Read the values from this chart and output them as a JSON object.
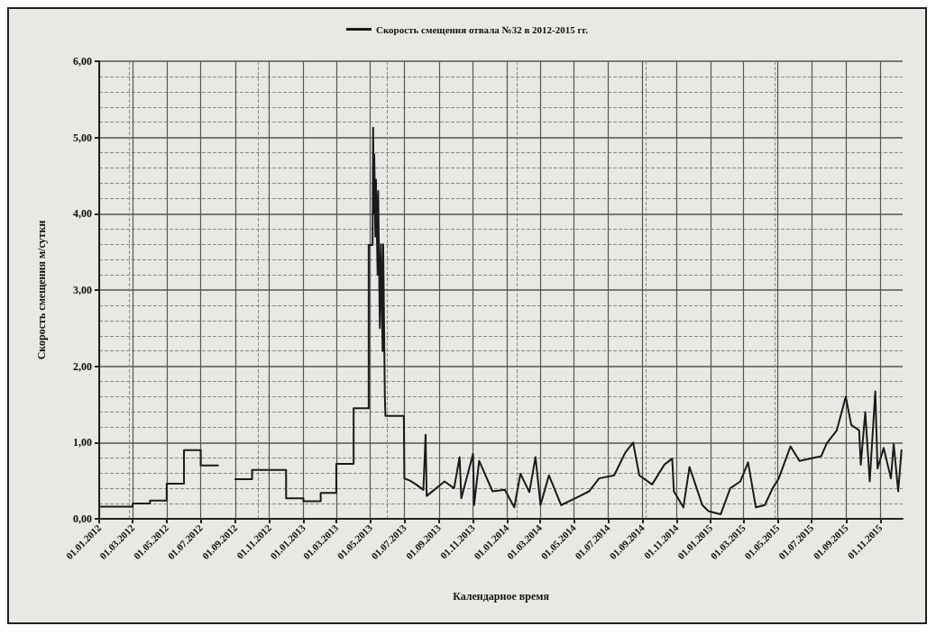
{
  "chart_data": {
    "type": "line",
    "xlabel": "Календарное время",
    "ylabel": "Скорость смещения м/сутки",
    "legend": "top",
    "grid": true,
    "marker": "none",
    "line_style": "solid",
    "xlim": [
      "2012-01-01",
      "2015-12-11"
    ],
    "xticks": [
      {
        "value": "2012-01-01",
        "label": "01.01.2012"
      },
      {
        "value": "2012-03-01",
        "label": "01.03.2012"
      },
      {
        "value": "2012-05-01",
        "label": "01.05.2012"
      },
      {
        "value": "2012-07-01",
        "label": "01.07.2012"
      },
      {
        "value": "2012-09-01",
        "label": "01.09.2012"
      },
      {
        "value": "2012-11-01",
        "label": "01.11.2012"
      },
      {
        "value": "2013-01-01",
        "label": "01.01.2013"
      },
      {
        "value": "2013-03-01",
        "label": "01.03.2013"
      },
      {
        "value": "2013-05-01",
        "label": "01.05.2013"
      },
      {
        "value": "2013-07-01",
        "label": "01.07.2013"
      },
      {
        "value": "2013-09-01",
        "label": "01.09.2013"
      },
      {
        "value": "2013-11-01",
        "label": "01.11.2013"
      },
      {
        "value": "2014-01-01",
        "label": "01.01.2014"
      },
      {
        "value": "2014-03-01",
        "label": "01.03.2014"
      },
      {
        "value": "2014-05-01",
        "label": "01.05.2014"
      },
      {
        "value": "2014-07-01",
        "label": "01.07.2014"
      },
      {
        "value": "2014-09-01",
        "label": "01.09.2014"
      },
      {
        "value": "2014-11-01",
        "label": "01.11.2014"
      },
      {
        "value": "2015-01-01",
        "label": "01.01.2015"
      },
      {
        "value": "2015-03-01",
        "label": "01.03.2015"
      },
      {
        "value": "2015-05-01",
        "label": "01.05.2015"
      },
      {
        "value": "2015-07-01",
        "label": "01.07.2015"
      },
      {
        "value": "2015-09-01",
        "label": "01.09.2015"
      },
      {
        "value": "2015-11-01",
        "label": "01.11.2015"
      }
    ],
    "ylim": [
      0,
      6
    ],
    "yticks": [
      {
        "value": 0,
        "label": "0,00"
      },
      {
        "value": 1,
        "label": "1,00"
      },
      {
        "value": 2,
        "label": "2,00"
      },
      {
        "value": 3,
        "label": "3,00"
      },
      {
        "value": 4,
        "label": "4,00"
      },
      {
        "value": 5,
        "label": "5,00"
      },
      {
        "value": 6,
        "label": "6,00"
      }
    ],
    "series": [
      {
        "name": "Скорость смещения отвала №32 в 2012-2015 гг.",
        "color": "#1a1a1a",
        "x": [
          "2012-01-01",
          "2012-03-01",
          "2012-03-01",
          "2012-04-01",
          "2012-04-01",
          "2012-05-01",
          "2012-05-01",
          "2012-06-01",
          "2012-06-01",
          "2012-07-01",
          "2012-07-01",
          "2012-08-01",
          "2012-08-15",
          "2012-09-01",
          "2012-10-01",
          "2012-10-01",
          "2012-12-01",
          "2012-12-01",
          "2013-01-01",
          "2013-01-01",
          "2013-02-01",
          "2013-02-01",
          "2013-03-01",
          "2013-03-01",
          "2013-04-01",
          "2013-04-01",
          "2013-04-28",
          "2013-04-28",
          "2013-05-05",
          "2013-05-06",
          "2013-05-07",
          "2013-05-08",
          "2013-05-10",
          "2013-05-11",
          "2013-05-14",
          "2013-05-15",
          "2013-05-18",
          "2013-05-20",
          "2013-05-23",
          "2013-05-24",
          "2013-05-27",
          "2013-05-28",
          "2013-06-30",
          "2013-07-01",
          "2013-07-11",
          "2013-07-22",
          "2013-08-04",
          "2013-08-08",
          "2013-08-10",
          "2013-09-11",
          "2013-09-28",
          "2013-10-08",
          "2013-10-11",
          "2013-11-01",
          "2013-11-03",
          "2013-11-12",
          "2013-12-06",
          "2013-12-28",
          "2014-01-14",
          "2014-01-25",
          "2014-02-10",
          "2014-02-21",
          "2014-03-02",
          "2014-03-17",
          "2014-04-08",
          "2014-05-06",
          "2014-05-28",
          "2014-06-15",
          "2014-07-12",
          "2014-08-01",
          "2014-08-15",
          "2014-08-26",
          "2014-09-18",
          "2014-10-10",
          "2014-10-24",
          "2014-10-27",
          "2014-11-13",
          "2014-11-24",
          "2014-12-17",
          "2014-12-28",
          "2015-01-19",
          "2015-02-05",
          "2015-02-23",
          "2015-03-09",
          "2015-03-23",
          "2015-04-08",
          "2015-04-22",
          "2015-05-03",
          "2015-05-24",
          "2015-06-09",
          "2015-07-18",
          "2015-07-28",
          "2015-08-15",
          "2015-08-31",
          "2015-09-10",
          "2015-09-24",
          "2015-09-27",
          "2015-10-05",
          "2015-10-13",
          "2015-10-23",
          "2015-10-27",
          "2015-11-07",
          "2015-11-20",
          "2015-11-25",
          "2015-12-03",
          "2015-12-09"
        ],
        "values": [
          0.16,
          0.16,
          0.2,
          0.2,
          0.24,
          0.24,
          0.46,
          0.46,
          0.9,
          0.9,
          0.7,
          0.7,
          null,
          0.52,
          0.52,
          0.64,
          0.64,
          0.27,
          0.27,
          0.23,
          0.23,
          0.34,
          0.34,
          0.72,
          0.72,
          1.45,
          1.45,
          3.59,
          3.59,
          5.13,
          4.0,
          4.78,
          3.7,
          4.45,
          3.2,
          4.3,
          2.5,
          3.6,
          2.2,
          3.6,
          1.6,
          1.35,
          1.35,
          0.53,
          0.5,
          0.45,
          0.38,
          1.1,
          0.3,
          0.49,
          0.4,
          0.81,
          0.27,
          0.85,
          0.18,
          0.76,
          0.36,
          0.38,
          0.15,
          0.59,
          0.35,
          0.81,
          0.18,
          0.57,
          0.18,
          0.28,
          0.36,
          0.53,
          0.57,
          0.87,
          1.0,
          0.57,
          0.45,
          0.71,
          0.79,
          0.36,
          0.15,
          0.68,
          0.18,
          0.1,
          0.06,
          0.4,
          0.49,
          0.74,
          0.15,
          0.18,
          0.4,
          0.53,
          0.95,
          0.76,
          0.82,
          0.99,
          1.16,
          1.6,
          1.23,
          1.16,
          0.71,
          1.4,
          0.49,
          1.67,
          0.66,
          0.93,
          0.53,
          0.98,
          0.36,
          0.9
        ]
      }
    ]
  }
}
